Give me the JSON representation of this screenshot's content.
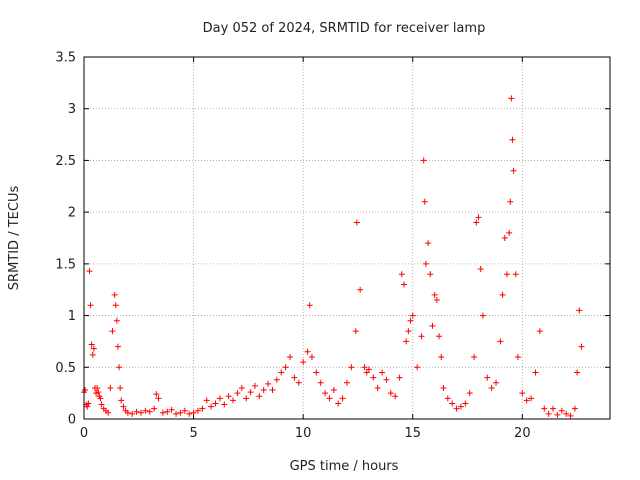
{
  "chart_data": {
    "type": "scatter",
    "title": "Day 052 of 2024, SRMTID for receiver lamp",
    "xlabel": "GPS time / hours",
    "ylabel": "SRMTID / TECUs",
    "xlim": [
      0,
      24
    ],
    "ylim": [
      0,
      3.5
    ],
    "grid": true,
    "marker": "+",
    "marker_color": "#ff0000",
    "x_ticks": [
      0,
      5,
      10,
      15,
      20
    ],
    "x_tick_labels": [
      "0",
      "5",
      "10",
      "15",
      "20"
    ],
    "y_ticks": [
      0,
      0.5,
      1,
      1.5,
      2,
      2.5,
      3,
      3.5
    ],
    "y_tick_labels": [
      "0",
      "0.5",
      "1",
      "1.5",
      "2",
      "2.5",
      "3",
      "3.5"
    ],
    "series": [
      {
        "name": "SRMTID",
        "x": [
          0.0,
          0.05,
          0.1,
          0.15,
          0.2,
          0.25,
          0.3,
          0.35,
          0.4,
          0.45,
          0.5,
          0.55,
          0.6,
          0.65,
          0.7,
          0.75,
          0.8,
          0.9,
          1.0,
          1.1,
          1.2,
          1.3,
          1.4,
          1.45,
          1.5,
          1.55,
          1.6,
          1.65,
          1.7,
          1.8,
          1.9,
          2.0,
          2.2,
          2.4,
          2.6,
          2.8,
          3.0,
          3.2,
          3.3,
          3.4,
          3.6,
          3.8,
          4.0,
          4.2,
          4.4,
          4.6,
          4.8,
          5.0,
          5.2,
          5.4,
          5.6,
          5.8,
          6.0,
          6.2,
          6.4,
          6.6,
          6.8,
          7.0,
          7.2,
          7.4,
          7.6,
          7.8,
          8.0,
          8.2,
          8.4,
          8.6,
          8.8,
          9.0,
          9.2,
          9.4,
          9.6,
          9.8,
          10.0,
          10.2,
          10.3,
          10.4,
          10.6,
          10.8,
          11.0,
          11.2,
          11.4,
          11.6,
          11.8,
          12.0,
          12.2,
          12.4,
          12.45,
          12.6,
          12.8,
          12.9,
          13.0,
          13.2,
          13.4,
          13.6,
          13.8,
          14.0,
          14.2,
          14.4,
          14.5,
          14.6,
          14.7,
          14.8,
          14.9,
          15.0,
          15.2,
          15.4,
          15.5,
          15.55,
          15.6,
          15.7,
          15.8,
          15.9,
          16.0,
          16.1,
          16.2,
          16.3,
          16.4,
          16.6,
          16.8,
          17.0,
          17.2,
          17.4,
          17.6,
          17.8,
          17.9,
          18.0,
          18.1,
          18.2,
          18.4,
          18.6,
          18.8,
          19.0,
          19.1,
          19.2,
          19.3,
          19.4,
          19.45,
          19.5,
          19.55,
          19.6,
          19.7,
          19.8,
          20.0,
          20.2,
          20.4,
          20.6,
          20.8,
          21.0,
          21.2,
          21.4,
          21.6,
          21.8,
          22.0,
          22.2,
          22.4,
          22.5,
          22.6,
          22.7
        ],
        "y": [
          0.26,
          0.28,
          0.14,
          0.12,
          0.15,
          1.43,
          1.1,
          0.72,
          0.62,
          0.68,
          0.3,
          0.25,
          0.3,
          0.26,
          0.22,
          0.2,
          0.14,
          0.1,
          0.08,
          0.06,
          0.3,
          0.85,
          1.2,
          1.1,
          0.95,
          0.7,
          0.5,
          0.3,
          0.18,
          0.12,
          0.08,
          0.06,
          0.05,
          0.07,
          0.06,
          0.08,
          0.07,
          0.1,
          0.24,
          0.2,
          0.06,
          0.07,
          0.09,
          0.05,
          0.06,
          0.08,
          0.05,
          0.06,
          0.08,
          0.1,
          0.18,
          0.12,
          0.15,
          0.2,
          0.14,
          0.22,
          0.18,
          0.25,
          0.3,
          0.2,
          0.26,
          0.32,
          0.22,
          0.28,
          0.34,
          0.28,
          0.38,
          0.45,
          0.5,
          0.6,
          0.4,
          0.35,
          0.55,
          0.65,
          1.1,
          0.6,
          0.45,
          0.35,
          0.25,
          0.2,
          0.28,
          0.15,
          0.2,
          0.35,
          0.5,
          0.85,
          1.9,
          1.25,
          0.5,
          0.45,
          0.48,
          0.4,
          0.3,
          0.45,
          0.38,
          0.25,
          0.22,
          0.4,
          1.4,
          1.3,
          0.75,
          0.85,
          0.95,
          1.0,
          0.5,
          0.8,
          2.5,
          2.1,
          1.5,
          1.7,
          1.4,
          0.9,
          1.2,
          1.15,
          0.8,
          0.6,
          0.3,
          0.2,
          0.15,
          0.1,
          0.12,
          0.15,
          0.25,
          0.6,
          1.9,
          1.95,
          1.45,
          1.0,
          0.4,
          0.3,
          0.35,
          0.75,
          1.2,
          1.75,
          1.4,
          1.8,
          2.1,
          3.1,
          2.7,
          2.4,
          1.4,
          0.6,
          0.25,
          0.18,
          0.2,
          0.45,
          0.85,
          0.1,
          0.05,
          0.1,
          0.04,
          0.08,
          0.05,
          0.03,
          0.1,
          0.45,
          1.05,
          0.7
        ]
      }
    ]
  }
}
